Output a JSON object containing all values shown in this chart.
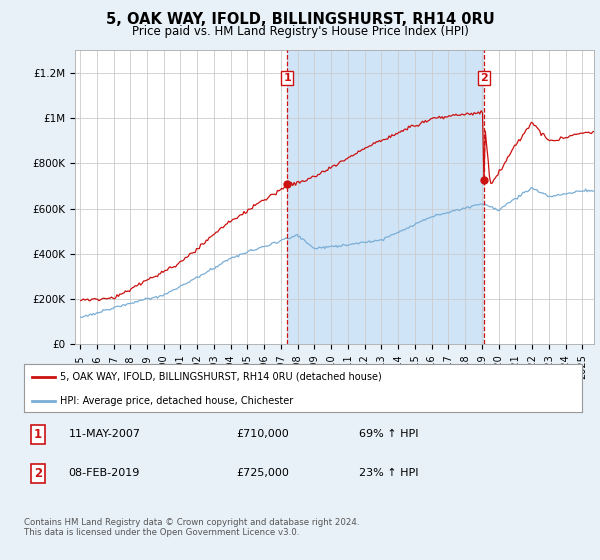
{
  "title": "5, OAK WAY, IFOLD, BILLINGSHURST, RH14 0RU",
  "subtitle": "Price paid vs. HM Land Registry's House Price Index (HPI)",
  "bg_color": "#e8f0f8",
  "plot_bg_color": "#ffffff",
  "shade_color": "#d0e4f7",
  "sale1_price": 710000,
  "sale2_price": 725000,
  "legend_house": "5, OAK WAY, IFOLD, BILLINGSHURST, RH14 0RU (detached house)",
  "legend_hpi": "HPI: Average price, detached house, Chichester",
  "footer": "Contains HM Land Registry data © Crown copyright and database right 2024.\nThis data is licensed under the Open Government Licence v3.0.",
  "ylim": [
    0,
    1300000
  ],
  "yticks": [
    0,
    200000,
    400000,
    600000,
    800000,
    1000000,
    1200000
  ],
  "ytick_labels": [
    "£0",
    "£200K",
    "£400K",
    "£600K",
    "£800K",
    "£1M",
    "£1.2M"
  ],
  "hpi_color": "#7aaed6",
  "price_color": "#cc1111",
  "vline_color": "#cc1111",
  "grid_color": "#cccccc"
}
